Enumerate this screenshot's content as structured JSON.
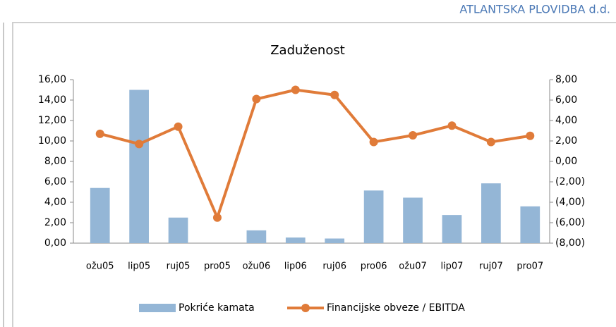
{
  "header": "ATLANTSKA PLOVIDBA d.d.",
  "chart_data": {
    "type": "bar-line",
    "title": "Zaduženost",
    "categories": [
      "ožu05",
      "lip05",
      "ruj05",
      "pro05",
      "ožu06",
      "lip06",
      "ruj06",
      "pro06",
      "ožu07",
      "lip07",
      "ruj07",
      "pro07"
    ],
    "series": [
      {
        "name": "Pokriće kamata",
        "type": "bar",
        "color": "#94b6d6",
        "values": [
          5.4,
          15.0,
          2.5,
          0,
          1.25,
          0.55,
          0.45,
          5.15,
          4.45,
          2.75,
          5.85,
          3.6
        ]
      },
      {
        "name": "Financijske obveze / EBITDA",
        "type": "line",
        "axis": "y2",
        "color": "#e07b39",
        "values": [
          2.7,
          1.7,
          3.4,
          -5.5,
          6.1,
          7.0,
          6.5,
          1.9,
          2.55,
          3.5,
          1.9,
          2.5
        ]
      }
    ],
    "ylim": [
      0,
      16
    ],
    "yticks": [
      {
        "value": 0,
        "label": "0,00"
      },
      {
        "value": 2,
        "label": "2,00"
      },
      {
        "value": 4,
        "label": "4,00"
      },
      {
        "value": 6,
        "label": "6,00"
      },
      {
        "value": 8,
        "label": "8,00"
      },
      {
        "value": 10,
        "label": "10,00"
      },
      {
        "value": 12,
        "label": "12,00"
      },
      {
        "value": 14,
        "label": "14,00"
      },
      {
        "value": 16,
        "label": "16,00"
      }
    ],
    "y2lim": [
      -8,
      8
    ],
    "y2ticks": [
      {
        "value": -8,
        "label": "(8,00)"
      },
      {
        "value": -6,
        "label": "(6,00)"
      },
      {
        "value": -4,
        "label": "(4,00)"
      },
      {
        "value": -2,
        "label": "(2,00)"
      },
      {
        "value": 0,
        "label": "0,00"
      },
      {
        "value": 2,
        "label": "2,00"
      },
      {
        "value": 4,
        "label": "4,00"
      },
      {
        "value": 6,
        "label": "6,00"
      },
      {
        "value": 8,
        "label": "8,00"
      }
    ],
    "legend": "bottom"
  }
}
